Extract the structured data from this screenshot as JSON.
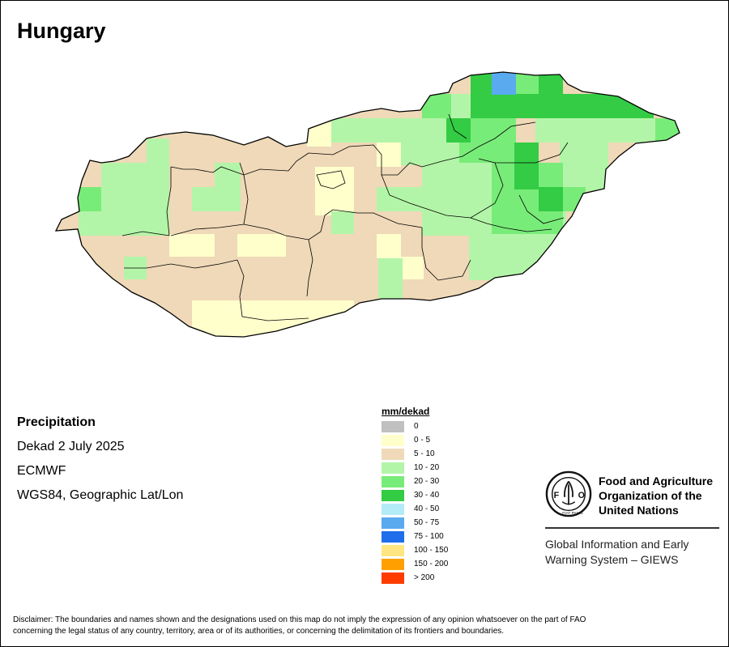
{
  "map": {
    "title": "Hungary",
    "info": {
      "variable": "Precipitation",
      "period": "Dekad 2 July 2025",
      "model": "ECMWF",
      "projection": "WGS84, Geographic Lat/Lon"
    },
    "legend": {
      "title": "mm/dekad",
      "classes": [
        {
          "label": "0",
          "color": "#c0c0c0"
        },
        {
          "label": "0 - 5",
          "color": "#ffffcc"
        },
        {
          "label": "5 - 10",
          "color": "#efd9b8"
        },
        {
          "label": "10 - 20",
          "color": "#b3f5a8"
        },
        {
          "label": "20 - 30",
          "color": "#78ec78"
        },
        {
          "label": "30 - 40",
          "color": "#33cc44"
        },
        {
          "label": "40 - 50",
          "color": "#b3ecf7"
        },
        {
          "label": "50 - 75",
          "color": "#5aaaf0"
        },
        {
          "label": "75 - 100",
          "color": "#1e6eeb"
        },
        {
          "label": "100 - 150",
          "color": "#ffe680"
        },
        {
          "label": "150 - 200",
          "color": "#ffa000"
        },
        {
          "label": "> 200",
          "color": "#ff3c00"
        }
      ]
    }
  },
  "organization": {
    "name_line1": "Food and Agriculture",
    "name_line2": "Organization of the",
    "name_line3": "United Nations",
    "system_line1": "Global Information and Early",
    "system_line2": "Warning System – GIEWS",
    "logo_text": "FAO",
    "logo_motto": "FIAT PANIS"
  },
  "disclaimer": {
    "line1": "Disclaimer: The boundaries and names shown and the designations used on this map do not imply the expression of any opinion whatsoever on the part of FAO",
    "line2": "concerning the legal status of any country, territory, area or of its authorities, or concerning the delimitation of its frontiers and boundaries."
  }
}
